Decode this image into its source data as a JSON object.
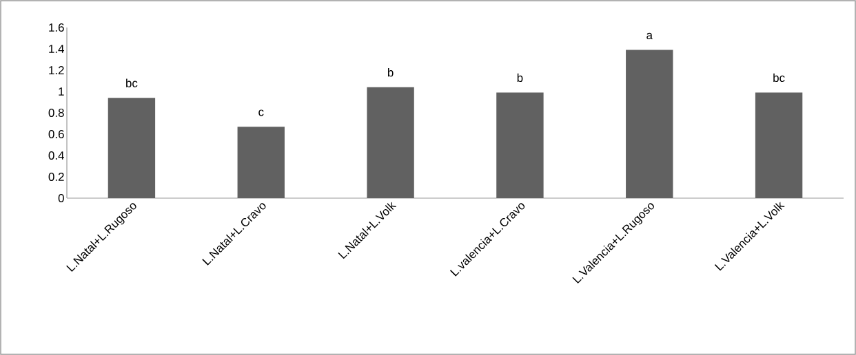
{
  "chart_data": {
    "type": "bar",
    "categories": [
      "L.Natal+L.Rugoso",
      "L.Natal+L.Cravo",
      "L.Natal+L.Volk",
      "L.valencia+L.Cravo",
      "L.Valencia+L.Rugoso",
      "L.Valencia+L.Volk"
    ],
    "values": [
      0.94,
      0.67,
      1.04,
      0.99,
      1.39,
      0.99
    ],
    "color": "#616161",
    "ylim": [
      0,
      1.6
    ],
    "yticks": [
      0,
      0.2,
      0.4,
      0.6,
      0.8,
      1,
      1.2,
      1.4,
      1.6
    ],
    "annotations": [
      {
        "text": "bc",
        "x": "L.Natal+L.Rugoso",
        "y": 0.94
      },
      {
        "text": "c",
        "x": "L.Natal+L.Cravo",
        "y": 0.67
      },
      {
        "text": "b",
        "x": "L.Natal+L.Volk",
        "y": 1.04
      },
      {
        "text": "b",
        "x": "L.valencia+L.Cravo",
        "y": 0.99
      },
      {
        "text": "a",
        "x": "L.Valencia+L.Rugoso",
        "y": 1.39
      },
      {
        "text": "bc",
        "x": "L.Valencia+L.Volk",
        "y": 0.99
      }
    ]
  }
}
